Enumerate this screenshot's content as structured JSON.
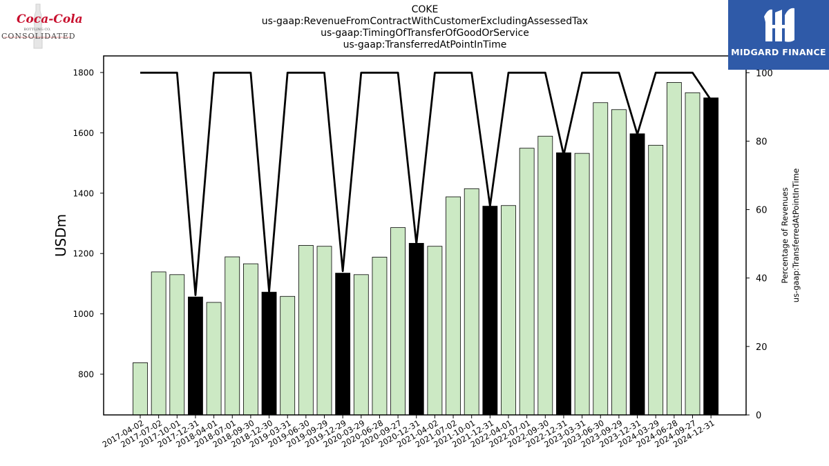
{
  "title_lines": [
    "COKE",
    "us-gaap:RevenueFromContractWithCustomerExcludingAssessedTax",
    "us-gaap:TimingOfTransferOfGoodOrService",
    "us-gaap:TransferredAtPointInTime"
  ],
  "logos": {
    "left": {
      "script": "Coca-Cola",
      "sub": "BOTTLING CO.",
      "word": "CONSOLIDATED"
    },
    "right": {
      "text": "MIDGARD FINANCE",
      "background": "#2f5aa8"
    }
  },
  "chart_data": {
    "type": "bar",
    "categories": [
      "2017-04-02",
      "2017-07-02",
      "2017-10-01",
      "2017-12-31",
      "2018-04-01",
      "2018-07-01",
      "2018-09-30",
      "2018-12-30",
      "2019-03-31",
      "2019-06-30",
      "2019-09-29",
      "2019-12-29",
      "2020-03-29",
      "2020-06-28",
      "2020-09-27",
      "2020-12-31",
      "2021-04-02",
      "2021-07-02",
      "2021-10-01",
      "2021-12-31",
      "2022-04-01",
      "2022-07-01",
      "2022-09-30",
      "2022-12-31",
      "2023-03-31",
      "2023-06-30",
      "2023-09-29",
      "2023-12-31",
      "2024-03-29",
      "2024-06-28",
      "2024-09-27",
      "2024-12-31"
    ],
    "values": [
      838,
      1139,
      1130,
      1056,
      1038,
      1189,
      1166,
      1072,
      1058,
      1227,
      1224,
      1135,
      1130,
      1188,
      1286,
      1234,
      1224,
      1388,
      1415,
      1357,
      1359,
      1549,
      1589,
      1534,
      1532,
      1700,
      1677,
      1597,
      1559,
      1767,
      1733,
      1716
    ],
    "bar_colors": [
      "#cce9c4",
      "#cce9c4",
      "#cce9c4",
      "#000000",
      "#cce9c4",
      "#cce9c4",
      "#cce9c4",
      "#000000",
      "#cce9c4",
      "#cce9c4",
      "#cce9c4",
      "#000000",
      "#cce9c4",
      "#cce9c4",
      "#cce9c4",
      "#000000",
      "#cce9c4",
      "#cce9c4",
      "#cce9c4",
      "#000000",
      "#cce9c4",
      "#cce9c4",
      "#cce9c4",
      "#000000",
      "#cce9c4",
      "#cce9c4",
      "#cce9c4",
      "#000000",
      "#cce9c4",
      "#cce9c4",
      "#cce9c4",
      "#000000"
    ],
    "line_values": [
      100,
      100,
      100,
      35,
      100,
      100,
      100,
      36,
      100,
      100,
      100,
      42,
      100,
      100,
      100,
      50,
      100,
      100,
      100,
      61,
      100,
      100,
      100,
      76,
      100,
      100,
      100,
      82,
      100,
      100,
      100,
      92
    ],
    "ylabel": "USDm",
    "y2label_lines": [
      "Percentage of Revenues",
      "us-gaap:TransferredAtPointInTime"
    ],
    "ylim": [
      665,
      1855
    ],
    "y2lim": [
      0,
      104.9
    ],
    "yticks": [
      "800",
      "1000",
      "1200",
      "1400",
      "1600",
      "1800"
    ],
    "y2ticks": [
      "0",
      "20",
      "40",
      "60",
      "80",
      "100"
    ],
    "grid": false
  }
}
